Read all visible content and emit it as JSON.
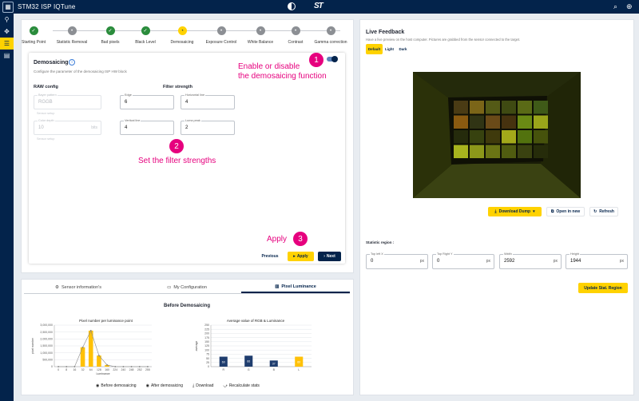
{
  "topbar": {
    "title": "STM32 ISP IQTune",
    "brand": "ST",
    "search_icon": "search-icon",
    "globe_icon": "globe-icon"
  },
  "sidenav": {
    "items": [
      "network-icon",
      "move-icon",
      "tune-icon",
      "document-icon"
    ]
  },
  "steps": [
    {
      "label": "Starting Point",
      "state": "done"
    },
    {
      "label": "Statistic Removal",
      "state": "todo"
    },
    {
      "label": "Bad pixels",
      "state": "done"
    },
    {
      "label": "Black Level",
      "state": "done"
    },
    {
      "label": "Demosaicing",
      "state": "current"
    },
    {
      "label": "Exposure Control",
      "state": "todo"
    },
    {
      "label": "White Balance",
      "state": "todo"
    },
    {
      "label": "Contrast",
      "state": "todo"
    },
    {
      "label": "Gamma correction",
      "state": "todo"
    }
  ],
  "demosaic": {
    "title": "Demosaicing",
    "description": "Configure the parameter of the demosaicing ISP HW block",
    "raw_config": {
      "title": "RAW config",
      "bayer_label": "Bayer pattern",
      "bayer_value": "RGGB",
      "bayer_help": "Sensor setup",
      "depth_label": "Color depth",
      "depth_value": "10",
      "depth_unit": "bits",
      "depth_help": "Sensor setup"
    },
    "filter": {
      "title": "Filter strength",
      "edge_label": "Edge",
      "edge_value": "6",
      "hline_label": "Horizontal line",
      "hline_value": "4",
      "vline_label": "Vertical line",
      "vline_value": "4",
      "peak_label": "Luma peak",
      "peak_value": "2"
    },
    "buttons": {
      "previous": "Previous",
      "apply": "Apply",
      "next": "Next"
    }
  },
  "annotations": {
    "one": "1",
    "one_text_1": "Enable or disable",
    "one_text_2": "the demosaicing function",
    "two": "2",
    "two_text": "Set the filter strengths",
    "three": "3",
    "three_text": "Apply"
  },
  "tabs": [
    "Sensor information's",
    "My Configuration",
    "Pixel Luminance"
  ],
  "luminance": {
    "title": "Before Demosaicing",
    "actions": [
      "Before demosaicing",
      "After demosaicing",
      "Download",
      "Recalculate stats"
    ]
  },
  "chart_data": [
    {
      "type": "bar",
      "title": "Pixel number per luminance point",
      "xlabel": "Luminance",
      "ylabel": "pixel number",
      "categories": [
        "0",
        "8",
        "16",
        "32",
        "64",
        "128",
        "160",
        "224",
        "240",
        "248",
        "252",
        "255"
      ],
      "values": [
        0,
        0,
        0,
        1400000,
        2600000,
        800000,
        120000,
        0,
        0,
        0,
        0,
        0
      ],
      "yticks": [
        "0",
        "500,000",
        "1,000,000",
        "1,500,000",
        "2,000,000",
        "2,500,000",
        "3,000,000"
      ],
      "ylim": [
        0,
        3000000
      ],
      "color": "#ffc107"
    },
    {
      "type": "bar",
      "title": "Average value of RGB & Luminance",
      "ylabel": "average",
      "categories": [
        "R",
        "G",
        "B",
        "L"
      ],
      "values": [
        60,
        66,
        37,
        60
      ],
      "colors": [
        "#1f3d6e",
        "#1f3d6e",
        "#1f3d6e",
        "#ffc107"
      ],
      "yticks": [
        "0",
        "25",
        "50",
        "75",
        "100",
        "125",
        "150",
        "175",
        "200",
        "225",
        "250"
      ],
      "ylim": [
        0,
        250
      ]
    }
  ],
  "live": {
    "title": "Live Feedback",
    "description": "Have a live preview on the host computer. Pictures are grabbed from the sensor connected to the target.",
    "bg_tabs": [
      "Default",
      "Light",
      "Dark"
    ],
    "download": "Download Dump",
    "open_new": "Open in new",
    "refresh": "Refresh",
    "stat_region": "Statistic region :",
    "top_left_label": "Top left X",
    "top_left_value": "0",
    "top_left_unit": "px",
    "top_right_label": "Top Right Y",
    "top_right_value": "0",
    "top_right_unit": "px",
    "width_label": "Width",
    "width_value": "2592",
    "width_unit": "px",
    "height_label": "Height",
    "height_value": "1944",
    "height_unit": "px",
    "update": "Update Stat. Region"
  },
  "colors": {
    "navy": "#03234b",
    "yellow": "#ffd200",
    "magenta": "#e6007e",
    "green": "#2a8c3c"
  }
}
